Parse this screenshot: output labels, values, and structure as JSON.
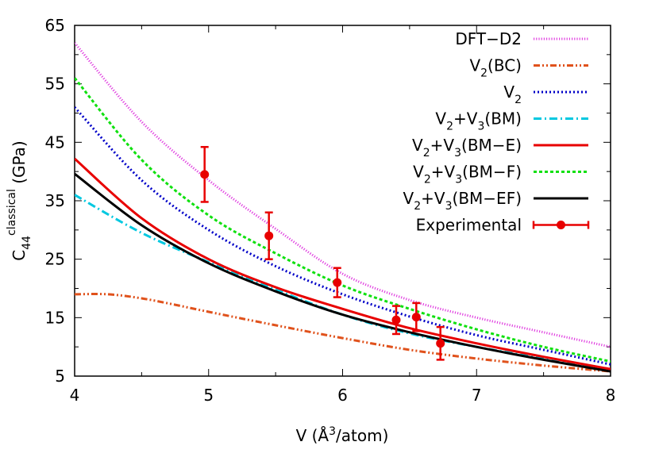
{
  "chart_data": {
    "type": "line",
    "title": "",
    "xlabel": "V (Å³/atom)",
    "xlabel_parts": {
      "pre": "V (Å",
      "sup": "3",
      "post": "/atom)"
    },
    "ylabel": "C44 classical (GPa)",
    "ylabel_parts": {
      "main": "C",
      "sub": "44",
      "sup": "classical",
      "post": " (GPa)"
    },
    "xlim": [
      4,
      8
    ],
    "ylim": [
      5,
      65
    ],
    "xticks": [
      4,
      5,
      6,
      7,
      8
    ],
    "yticks": [
      5,
      15,
      25,
      35,
      45,
      55,
      65
    ],
    "legend_position": "top-right",
    "series": [
      {
        "name": "DFT-D2",
        "label": {
          "main": "DFT−D2"
        },
        "color": "#e040e0",
        "dash": "1.2 2",
        "x": [
          4.0,
          4.5,
          5.0,
          5.5,
          6.0,
          6.5,
          7.0,
          7.5,
          8.0
        ],
        "y": [
          62.0,
          48.5,
          38.5,
          30.2,
          22.5,
          18.0,
          15.0,
          12.5,
          10.0
        ]
      },
      {
        "name": "V2(BC)",
        "label": {
          "main": "V",
          "sub": "2",
          "rest": "(BC)"
        },
        "color": "#e0521c",
        "dash": "8 3 2 3 2 3",
        "x": [
          4.0,
          4.25,
          4.5,
          4.75,
          5.0,
          5.5,
          6.0,
          6.5,
          7.0,
          7.5,
          8.0
        ],
        "y": [
          19.0,
          19.0,
          18.3,
          17.2,
          16.0,
          13.7,
          11.5,
          9.5,
          8.0,
          6.8,
          5.8
        ]
      },
      {
        "name": "V2",
        "label": {
          "main": "V",
          "sub": "2"
        },
        "color": "#0000c8",
        "dash": "2 3",
        "x": [
          4.0,
          4.5,
          5.0,
          5.5,
          6.0,
          6.5,
          7.0,
          7.5,
          8.0
        ],
        "y": [
          51.0,
          38.5,
          30.0,
          23.8,
          19.0,
          15.2,
          12.0,
          9.5,
          7.0
        ]
      },
      {
        "name": "V2+V3(BM)",
        "label": {
          "main": "V",
          "sub": "2",
          "mid": "+V",
          "sub2": "3",
          "rest": "(BM)"
        },
        "color": "#00c8e0",
        "dash": "10 4 2 4",
        "x": [
          4.0,
          4.5,
          5.0,
          5.5,
          6.0,
          6.5,
          7.0,
          7.5,
          8.0
        ],
        "y": [
          36.0,
          29.5,
          24.5,
          19.8,
          15.5,
          12.3,
          10.0,
          8.0,
          6.2
        ]
      },
      {
        "name": "V2+V3(BM-E)",
        "label": {
          "main": "V",
          "sub": "2",
          "mid": "+V",
          "sub2": "3",
          "rest": "(BM−E)"
        },
        "color": "#e80000",
        "dash": "",
        "x": [
          4.0,
          4.5,
          5.0,
          5.5,
          6.0,
          6.5,
          7.0,
          7.5,
          8.0
        ],
        "y": [
          42.2,
          32.0,
          25.0,
          20.2,
          16.5,
          13.2,
          10.6,
          8.3,
          6.2
        ]
      },
      {
        "name": "V2+V3(BM-F)",
        "label": {
          "main": "V",
          "sub": "2",
          "mid": "+V",
          "sub2": "3",
          "rest": "(BM−F)"
        },
        "color": "#10e010",
        "dash": "4 3",
        "x": [
          4.0,
          4.5,
          5.0,
          5.5,
          6.0,
          6.5,
          7.0,
          7.5,
          8.0
        ],
        "y": [
          56.0,
          42.0,
          32.5,
          26.0,
          20.5,
          16.5,
          13.0,
          10.0,
          7.5
        ]
      },
      {
        "name": "V2+V3(BM-EF)",
        "label": {
          "main": "V",
          "sub": "2",
          "mid": "+V",
          "sub2": "3",
          "rest": "(BM−EF)"
        },
        "color": "#000000",
        "dash": "",
        "x": [
          4.0,
          4.5,
          5.0,
          5.5,
          6.0,
          6.5,
          7.0,
          7.5,
          8.0
        ],
        "y": [
          39.6,
          30.8,
          24.3,
          19.5,
          15.5,
          12.5,
          10.0,
          7.8,
          5.8
        ]
      }
    ],
    "experimental": {
      "name": "Experimental",
      "label": {
        "main": "Experimental"
      },
      "color": "#e80000",
      "points": [
        {
          "x": 4.97,
          "y": 39.5,
          "err": 4.7
        },
        {
          "x": 5.45,
          "y": 29.0,
          "err": 4.0
        },
        {
          "x": 5.96,
          "y": 21.0,
          "err": 2.5
        },
        {
          "x": 6.4,
          "y": 14.6,
          "err": 2.4
        },
        {
          "x": 6.55,
          "y": 15.1,
          "err": 2.4
        },
        {
          "x": 6.73,
          "y": 10.6,
          "err": 2.8
        }
      ]
    }
  }
}
